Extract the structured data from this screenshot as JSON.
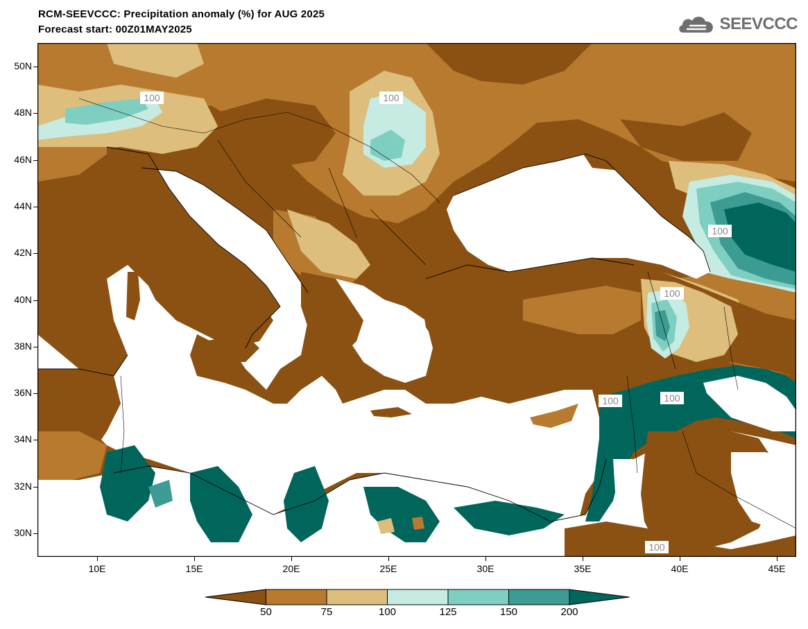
{
  "header": {
    "title": "RCM-SEEVCCC: Precipitation anomaly (%) for AUG 2025",
    "subtitle": "Forecast start: 00Z01MAY2025",
    "logo_text": "SEEVCCC"
  },
  "axes": {
    "lat_labels": [
      "50N",
      "48N",
      "46N",
      "44N",
      "42N",
      "40N",
      "38N",
      "36N",
      "34N",
      "32N",
      "30N"
    ],
    "lon_labels": [
      "10E",
      "15E",
      "20E",
      "25E",
      "30E",
      "35E",
      "40E",
      "45E"
    ]
  },
  "contour_labels": [
    "100",
    "100",
    "100",
    "100",
    "100",
    "100",
    "100"
  ],
  "colorbar": {
    "labels": [
      "50",
      "75",
      "100",
      "125",
      "150",
      "200"
    ],
    "colors": [
      "#8a5112",
      "#b87a2e",
      "#ddbe7d",
      "#c6ebe2",
      "#7ecfc1",
      "#3c9b92",
      "#00665c"
    ]
  },
  "palette": {
    "below50": "#8a5112",
    "50to75": "#b87a2e",
    "75to100": "#ddbe7d",
    "100to125": "#c6ebe2",
    "125to150": "#7ecfc1",
    "150to200": "#3c9b92",
    "above200": "#00665c",
    "sea": "#ffffff"
  }
}
